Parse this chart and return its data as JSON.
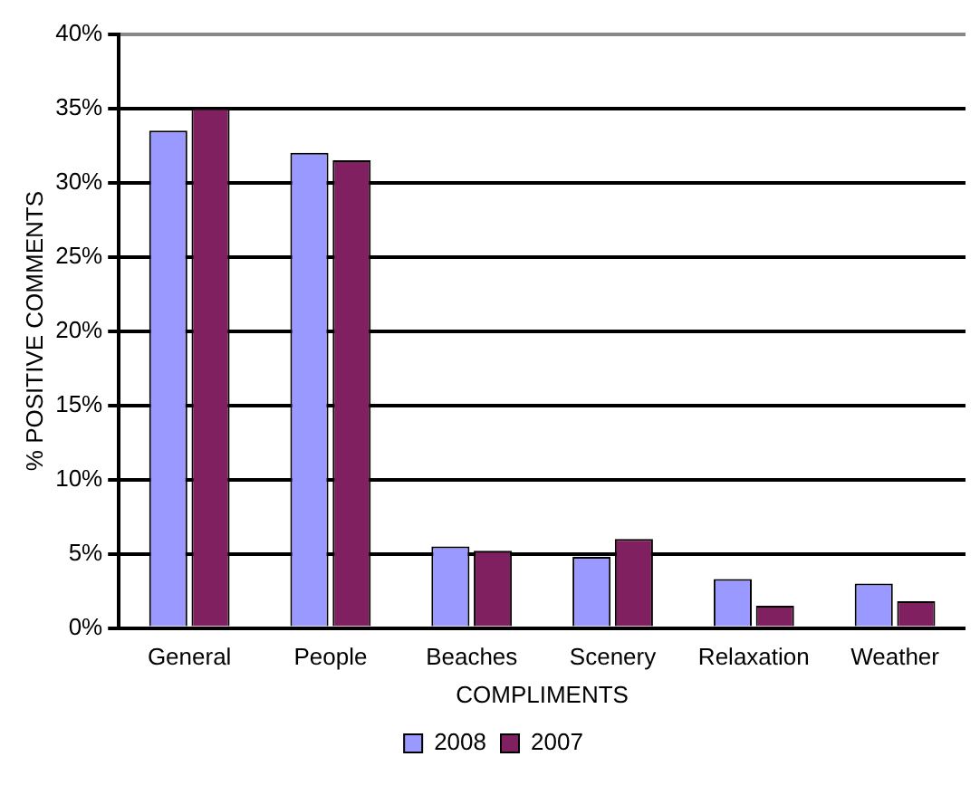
{
  "chart_data": {
    "type": "bar",
    "xlabel": "COMPLIMENTS",
    "ylabel": "% POSITIVE COMMENTS",
    "categories": [
      "General",
      "People",
      "Beaches",
      "Scenery",
      "Relaxation",
      "Weather"
    ],
    "series": [
      {
        "name": "2008",
        "color": "#9999ff",
        "values": [
          33.5,
          32,
          5.5,
          4.8,
          3.3,
          3
        ]
      },
      {
        "name": "2007",
        "color": "#802060",
        "values": [
          35,
          31.5,
          5.2,
          6,
          1.5,
          1.8
        ]
      }
    ],
    "ylim": [
      0,
      40
    ],
    "yticks": [
      {
        "value": 0,
        "label": "0%"
      },
      {
        "value": 5,
        "label": "5%"
      },
      {
        "value": 10,
        "label": "10%"
      },
      {
        "value": 15,
        "label": "15%"
      },
      {
        "value": 20,
        "label": "20%"
      },
      {
        "value": 25,
        "label": "25%"
      },
      {
        "value": 30,
        "label": "30%"
      },
      {
        "value": 35,
        "label": "35%"
      },
      {
        "value": 40,
        "label": "40%"
      }
    ],
    "grid": "y",
    "legend": "bottom"
  }
}
